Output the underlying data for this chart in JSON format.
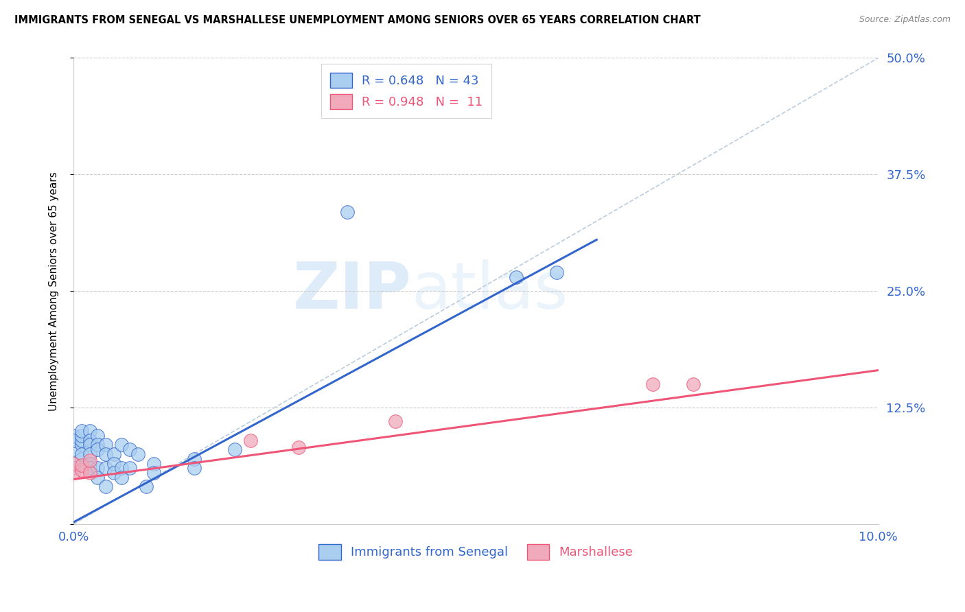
{
  "title": "IMMIGRANTS FROM SENEGAL VS MARSHALLESE UNEMPLOYMENT AMONG SENIORS OVER 65 YEARS CORRELATION CHART",
  "source": "Source: ZipAtlas.com",
  "ylabel": "Unemployment Among Seniors over 65 years",
  "right_yticks": [
    0.0,
    0.125,
    0.25,
    0.375,
    0.5
  ],
  "legend_blue_r": "R = 0.648",
  "legend_blue_n": "N = 43",
  "legend_pink_r": "R = 0.948",
  "legend_pink_n": "N =  11",
  "watermark_zip": "ZIP",
  "watermark_atlas": "atlas",
  "blue_color": "#aacef0",
  "pink_color": "#f0aabb",
  "blue_line_color": "#3366cc",
  "pink_line_color": "#ee5577",
  "dashed_line_color": "#bbccdd",
  "blue_scatter": [
    [
      0.0,
      0.06
    ],
    [
      0.0,
      0.08
    ],
    [
      0.0,
      0.095
    ],
    [
      0.0,
      0.09
    ],
    [
      0.001,
      0.085
    ],
    [
      0.001,
      0.09
    ],
    [
      0.001,
      0.07
    ],
    [
      0.001,
      0.075
    ],
    [
      0.001,
      0.095
    ],
    [
      0.001,
      0.1
    ],
    [
      0.002,
      0.1
    ],
    [
      0.002,
      0.09
    ],
    [
      0.002,
      0.085
    ],
    [
      0.002,
      0.075
    ],
    [
      0.002,
      0.065
    ],
    [
      0.002,
      0.06
    ],
    [
      0.003,
      0.095
    ],
    [
      0.003,
      0.085
    ],
    [
      0.003,
      0.08
    ],
    [
      0.003,
      0.06
    ],
    [
      0.003,
      0.05
    ],
    [
      0.004,
      0.085
    ],
    [
      0.004,
      0.075
    ],
    [
      0.004,
      0.06
    ],
    [
      0.004,
      0.04
    ],
    [
      0.005,
      0.075
    ],
    [
      0.005,
      0.065
    ],
    [
      0.005,
      0.055
    ],
    [
      0.006,
      0.085
    ],
    [
      0.006,
      0.06
    ],
    [
      0.006,
      0.05
    ],
    [
      0.007,
      0.08
    ],
    [
      0.007,
      0.06
    ],
    [
      0.008,
      0.075
    ],
    [
      0.009,
      0.04
    ],
    [
      0.01,
      0.065
    ],
    [
      0.01,
      0.055
    ],
    [
      0.015,
      0.07
    ],
    [
      0.015,
      0.06
    ],
    [
      0.02,
      0.08
    ],
    [
      0.034,
      0.335
    ],
    [
      0.055,
      0.265
    ],
    [
      0.06,
      0.27
    ]
  ],
  "pink_scatter": [
    [
      0.0,
      0.055
    ],
    [
      0.0,
      0.065
    ],
    [
      0.001,
      0.058
    ],
    [
      0.001,
      0.063
    ],
    [
      0.002,
      0.055
    ],
    [
      0.002,
      0.068
    ],
    [
      0.022,
      0.09
    ],
    [
      0.028,
      0.082
    ],
    [
      0.04,
      0.11
    ],
    [
      0.072,
      0.15
    ],
    [
      0.077,
      0.15
    ]
  ],
  "blue_line_x": [
    0.0,
    0.065
  ],
  "blue_line_y": [
    0.002,
    0.305
  ],
  "pink_line_x": [
    0.0,
    0.1
  ],
  "pink_line_y": [
    0.048,
    0.165
  ],
  "dashed_line_x": [
    0.0,
    0.1
  ],
  "dashed_line_y": [
    0.0,
    0.5
  ],
  "xlim": [
    0.0,
    0.1
  ],
  "ylim": [
    0.0,
    0.5
  ]
}
